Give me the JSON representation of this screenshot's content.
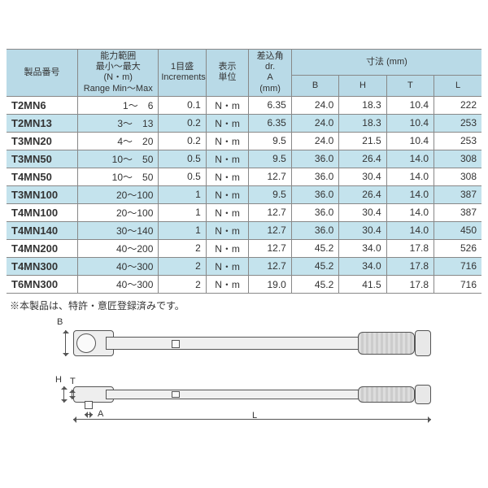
{
  "header": {
    "model": "製品番号",
    "range": "能力範囲\n最小～最大\n(N・m)\nRange Min～Max",
    "increment": "1目盛\nIncrements",
    "unit": "表示\n単位",
    "drive": "差込角\ndr.\nA\n(mm)",
    "dimensions": "寸法 (mm)",
    "B": "B",
    "H": "H",
    "T": "T",
    "L": "L"
  },
  "rows": [
    {
      "model": "T2MN6",
      "range": "1～　6",
      "inc": "0.1",
      "unit": "N・m",
      "A": "6.35",
      "B": "24.0",
      "H": "18.3",
      "T": "10.4",
      "L": "222"
    },
    {
      "model": "T2MN13",
      "range": "3～　13",
      "inc": "0.2",
      "unit": "N・m",
      "A": "6.35",
      "B": "24.0",
      "H": "18.3",
      "T": "10.4",
      "L": "253"
    },
    {
      "model": "T3MN20",
      "range": "4～　20",
      "inc": "0.2",
      "unit": "N・m",
      "A": "9.5",
      "B": "24.0",
      "H": "21.5",
      "T": "10.4",
      "L": "253"
    },
    {
      "model": "T3MN50",
      "range": "10～　50",
      "inc": "0.5",
      "unit": "N・m",
      "A": "9.5",
      "B": "36.0",
      "H": "26.4",
      "T": "14.0",
      "L": "308"
    },
    {
      "model": "T4MN50",
      "range": "10～　50",
      "inc": "0.5",
      "unit": "N・m",
      "A": "12.7",
      "B": "36.0",
      "H": "30.4",
      "T": "14.0",
      "L": "308"
    },
    {
      "model": "T3MN100",
      "range": "20～100",
      "inc": "1",
      "unit": "N・m",
      "A": "9.5",
      "B": "36.0",
      "H": "26.4",
      "T": "14.0",
      "L": "387"
    },
    {
      "model": "T4MN100",
      "range": "20～100",
      "inc": "1",
      "unit": "N・m",
      "A": "12.7",
      "B": "36.0",
      "H": "30.4",
      "T": "14.0",
      "L": "387"
    },
    {
      "model": "T4MN140",
      "range": "30～140",
      "inc": "1",
      "unit": "N・m",
      "A": "12.7",
      "B": "36.0",
      "H": "30.4",
      "T": "14.0",
      "L": "450"
    },
    {
      "model": "T4MN200",
      "range": "40～200",
      "inc": "2",
      "unit": "N・m",
      "A": "12.7",
      "B": "45.2",
      "H": "34.0",
      "T": "17.8",
      "L": "526"
    },
    {
      "model": "T4MN300",
      "range": "40～300",
      "inc": "2",
      "unit": "N・m",
      "A": "12.7",
      "B": "45.2",
      "H": "34.0",
      "T": "17.8",
      "L": "716"
    },
    {
      "model": "T6MN300",
      "range": "40～300",
      "inc": "2",
      "unit": "N・m",
      "A": "19.0",
      "B": "45.2",
      "H": "41.5",
      "T": "17.8",
      "L": "716"
    }
  ],
  "note": "※本製品は、特許・意匠登録済みです。",
  "dim_labels": {
    "B": "B",
    "H": "H",
    "T": "T",
    "A": "A",
    "L": "L"
  },
  "colors": {
    "header_bg": "#b9dae7",
    "row_even_bg": "#c4e3ed",
    "border": "#888888",
    "text": "#333333"
  },
  "colwidths_pct": [
    15,
    17,
    10,
    9,
    9,
    10,
    10,
    10,
    10
  ]
}
